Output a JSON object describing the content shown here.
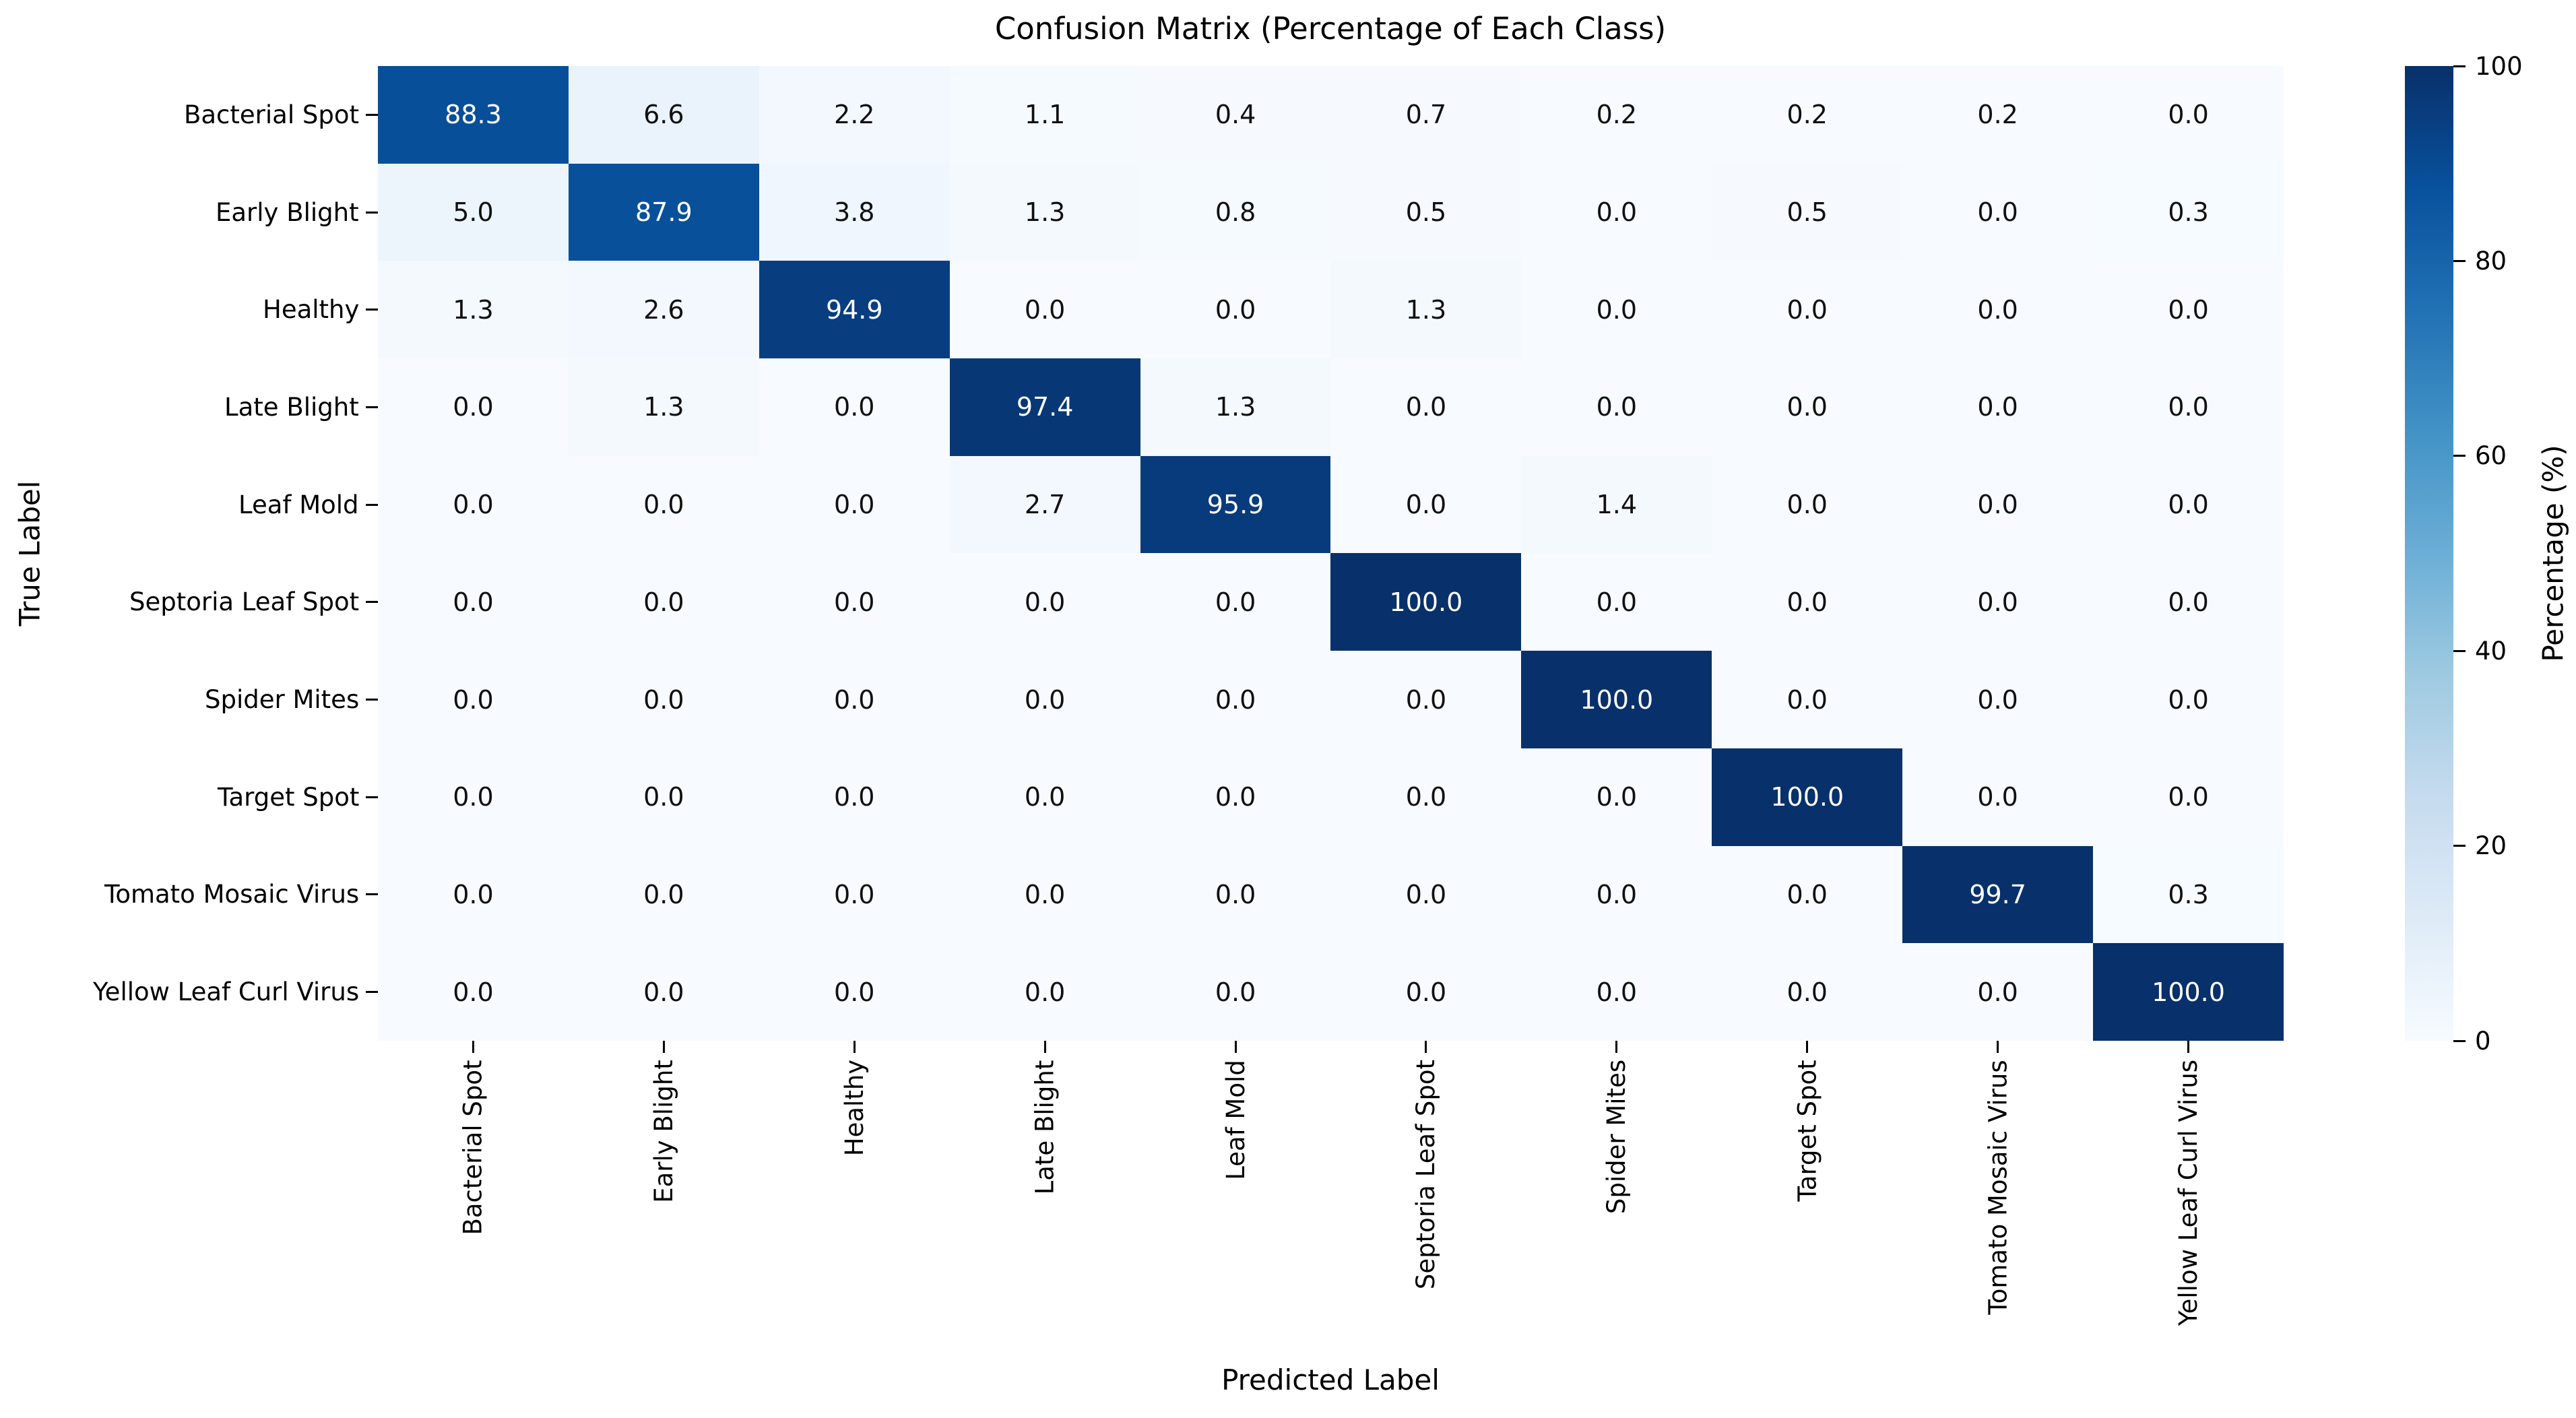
{
  "chart_data": {
    "type": "heatmap",
    "title": "Confusion Matrix (Percentage of Each Class)",
    "xlabel": "Predicted Label",
    "ylabel": "True Label",
    "classes": [
      "Bacterial Spot",
      "Early Blight",
      "Healthy",
      "Late Blight",
      "Leaf Mold",
      "Septoria Leaf Spot",
      "Spider Mites",
      "Target Spot",
      "Tomato Mosaic Virus",
      "Yellow Leaf Curl Virus"
    ],
    "matrix": [
      [
        88.3,
        6.6,
        2.2,
        1.1,
        0.4,
        0.7,
        0.2,
        0.2,
        0.2,
        0.0
      ],
      [
        5.0,
        87.9,
        3.8,
        1.3,
        0.8,
        0.5,
        0.0,
        0.5,
        0.0,
        0.3
      ],
      [
        1.3,
        2.6,
        94.9,
        0.0,
        0.0,
        1.3,
        0.0,
        0.0,
        0.0,
        0.0
      ],
      [
        0.0,
        1.3,
        0.0,
        97.4,
        1.3,
        0.0,
        0.0,
        0.0,
        0.0,
        0.0
      ],
      [
        0.0,
        0.0,
        0.0,
        2.7,
        95.9,
        0.0,
        1.4,
        0.0,
        0.0,
        0.0
      ],
      [
        0.0,
        0.0,
        0.0,
        0.0,
        0.0,
        100.0,
        0.0,
        0.0,
        0.0,
        0.0
      ],
      [
        0.0,
        0.0,
        0.0,
        0.0,
        0.0,
        0.0,
        100.0,
        0.0,
        0.0,
        0.0
      ],
      [
        0.0,
        0.0,
        0.0,
        0.0,
        0.0,
        0.0,
        0.0,
        100.0,
        0.0,
        0.0
      ],
      [
        0.0,
        0.0,
        0.0,
        0.0,
        0.0,
        0.0,
        0.0,
        0.0,
        99.7,
        0.3
      ],
      [
        0.0,
        0.0,
        0.0,
        0.0,
        0.0,
        0.0,
        0.0,
        0.0,
        0.0,
        100.0
      ]
    ],
    "value_decimals": 1,
    "colorbar": {
      "label": "Percentage (%)",
      "ticks": [
        0,
        20,
        40,
        60,
        80,
        100
      ],
      "min": 0,
      "max": 100
    },
    "colormap": {
      "name": "Blues",
      "stops": [
        {
          "t": 0.0,
          "rgb": [
            247,
            251,
            255
          ]
        },
        {
          "t": 0.125,
          "rgb": [
            222,
            235,
            247
          ]
        },
        {
          "t": 0.25,
          "rgb": [
            198,
            219,
            239
          ]
        },
        {
          "t": 0.375,
          "rgb": [
            158,
            202,
            225
          ]
        },
        {
          "t": 0.5,
          "rgb": [
            107,
            174,
            214
          ]
        },
        {
          "t": 0.625,
          "rgb": [
            66,
            146,
            198
          ]
        },
        {
          "t": 0.75,
          "rgb": [
            33,
            113,
            181
          ]
        },
        {
          "t": 0.875,
          "rgb": [
            8,
            81,
            156
          ]
        },
        {
          "t": 1.0,
          "rgb": [
            8,
            48,
            107
          ]
        }
      ]
    },
    "text_white_threshold": 50,
    "cell_text_colors": {
      "dark_cell": "#ffffff",
      "light_cell": "#101010"
    },
    "background_color": "#ffffff",
    "grid": false,
    "legend_position": "colorbar-right"
  }
}
